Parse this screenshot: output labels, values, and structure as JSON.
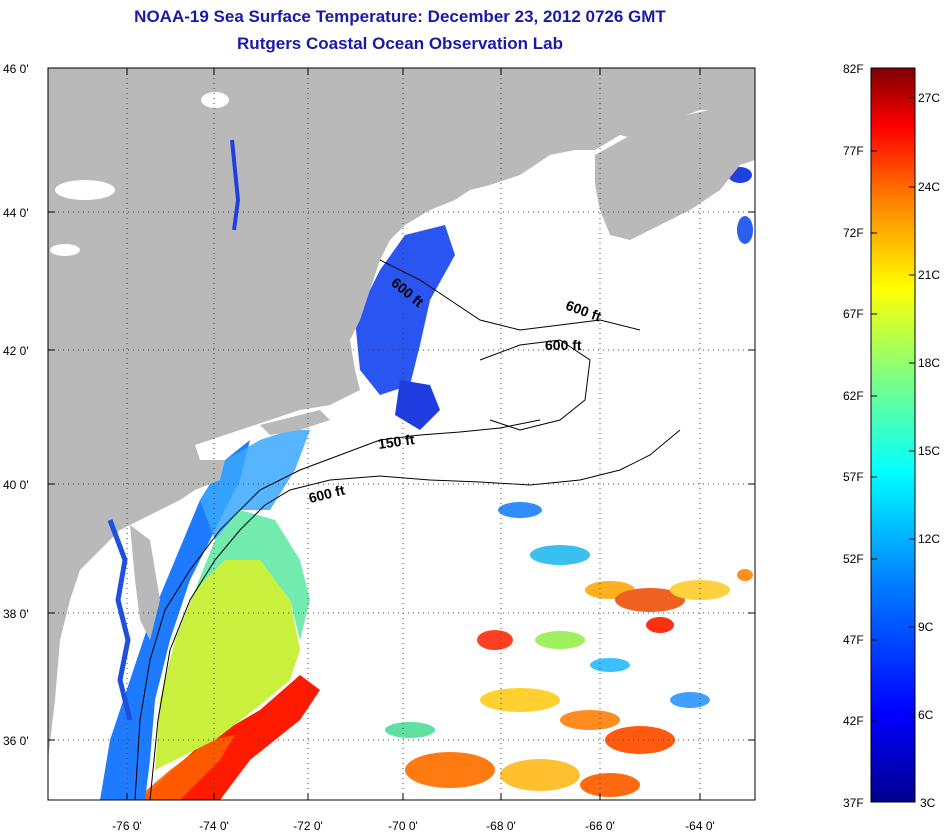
{
  "title": {
    "line1": "NOAA-19 Sea Surface Temperature:  December 23, 2012 0726 GMT",
    "line2": "Rutgers Coastal Ocean Observation Lab"
  },
  "map": {
    "lon_ticks": [
      "-76 0'",
      "-74 0'",
      "-72 0'",
      "-70 0'",
      "-68 0'",
      "-66 0'",
      "-64 0'"
    ],
    "lat_ticks": [
      "46 0'",
      "44 0'",
      "42 0'",
      "40 0'",
      "38 0'",
      "36 0'"
    ],
    "contour_labels": [
      "600 ft",
      "600 ft",
      "600 ft",
      "150 ft",
      "600 ft"
    ],
    "land_color": "#b9b9b9",
    "ocean_color": "#ffffff"
  },
  "colorbar": {
    "fahrenheit": [
      "82F",
      "77F",
      "72F",
      "67F",
      "62F",
      "57F",
      "52F",
      "47F",
      "42F",
      "37F"
    ],
    "celsius": [
      "27C",
      "24C",
      "21C",
      "18C",
      "15C",
      "12C",
      "9C",
      "6C",
      "3C"
    ],
    "colors": [
      "#7f0000",
      "#ff0000",
      "#ff8000",
      "#ffff00",
      "#80ff80",
      "#00ffff",
      "#0080ff",
      "#0000ff",
      "#00008f"
    ]
  }
}
